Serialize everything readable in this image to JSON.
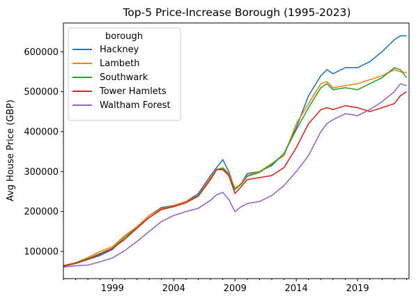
{
  "chart_data": {
    "type": "line",
    "title": "Top-5 Price-Increase Borough (1995-2023)",
    "xlabel": "",
    "ylabel": "Avg House Price (GBP)",
    "xlim": [
      1995.0,
      2023.2
    ],
    "ylim": [
      32000,
      672000
    ],
    "x_ticks": [
      1999,
      2004,
      2009,
      2014,
      2019
    ],
    "y_ticks": [
      100000,
      200000,
      300000,
      400000,
      500000,
      600000
    ],
    "y_tick_labels": [
      "100000",
      "200000",
      "300000",
      "400000",
      "500000",
      "600000"
    ],
    "grid": false,
    "legend": {
      "title": "borough",
      "position": "top-left"
    },
    "x": [
      1995,
      1996,
      1997,
      1998,
      1999,
      2000,
      2001,
      2002,
      2003,
      2004,
      2005,
      2006,
      2007,
      2007.5,
      2008,
      2008.5,
      2009,
      2009.5,
      2010,
      2011,
      2012,
      2013,
      2014,
      2015,
      2016,
      2016.5,
      2017,
      2018,
      2019,
      2020,
      2021,
      2022,
      2022.5,
      2023
    ],
    "series": [
      {
        "name": "Hackney",
        "color": "#1f77b4",
        "values": [
          63000,
          70000,
          80000,
          90000,
          105000,
          135000,
          160000,
          190000,
          210000,
          215000,
          225000,
          245000,
          290000,
          310000,
          330000,
          300000,
          255000,
          270000,
          295000,
          300000,
          315000,
          345000,
          410000,
          490000,
          540000,
          555000,
          545000,
          560000,
          560000,
          575000,
          600000,
          630000,
          640000,
          640000
        ]
      },
      {
        "name": "Lambeth",
        "color": "#ff7f0e",
        "values": [
          65000,
          72000,
          85000,
          100000,
          112000,
          140000,
          162000,
          190000,
          207000,
          215000,
          225000,
          240000,
          285000,
          305000,
          310000,
          295000,
          258000,
          270000,
          290000,
          300000,
          320000,
          340000,
          420000,
          470000,
          520000,
          525000,
          510000,
          515000,
          520000,
          530000,
          540000,
          555000,
          550000,
          548000
        ]
      },
      {
        "name": "Southwark",
        "color": "#2ca02c",
        "values": [
          64000,
          71000,
          82000,
          95000,
          108000,
          135000,
          158000,
          185000,
          205000,
          212000,
          222000,
          238000,
          280000,
          305000,
          308000,
          292000,
          255000,
          268000,
          288000,
          298000,
          318000,
          345000,
          405000,
          460000,
          510000,
          520000,
          505000,
          510000,
          505000,
          520000,
          535000,
          560000,
          555000,
          535000
        ]
      },
      {
        "name": "Tower Hamlets",
        "color": "#d62728",
        "values": [
          63000,
          70000,
          80000,
          93000,
          108000,
          130000,
          158000,
          185000,
          205000,
          213000,
          222000,
          240000,
          280000,
          305000,
          305000,
          290000,
          245000,
          262000,
          280000,
          285000,
          290000,
          310000,
          360000,
          420000,
          455000,
          460000,
          455000,
          465000,
          460000,
          450000,
          460000,
          470000,
          490000,
          500000
        ]
      },
      {
        "name": "Waltham Forest",
        "color": "#9467bd",
        "values": [
          61000,
          64000,
          66000,
          74000,
          84000,
          102000,
          125000,
          150000,
          175000,
          190000,
          200000,
          208000,
          228000,
          242000,
          248000,
          230000,
          200000,
          212000,
          220000,
          225000,
          240000,
          265000,
          300000,
          340000,
          400000,
          420000,
          430000,
          445000,
          440000,
          455000,
          475000,
          500000,
          520000,
          515000
        ]
      }
    ]
  }
}
